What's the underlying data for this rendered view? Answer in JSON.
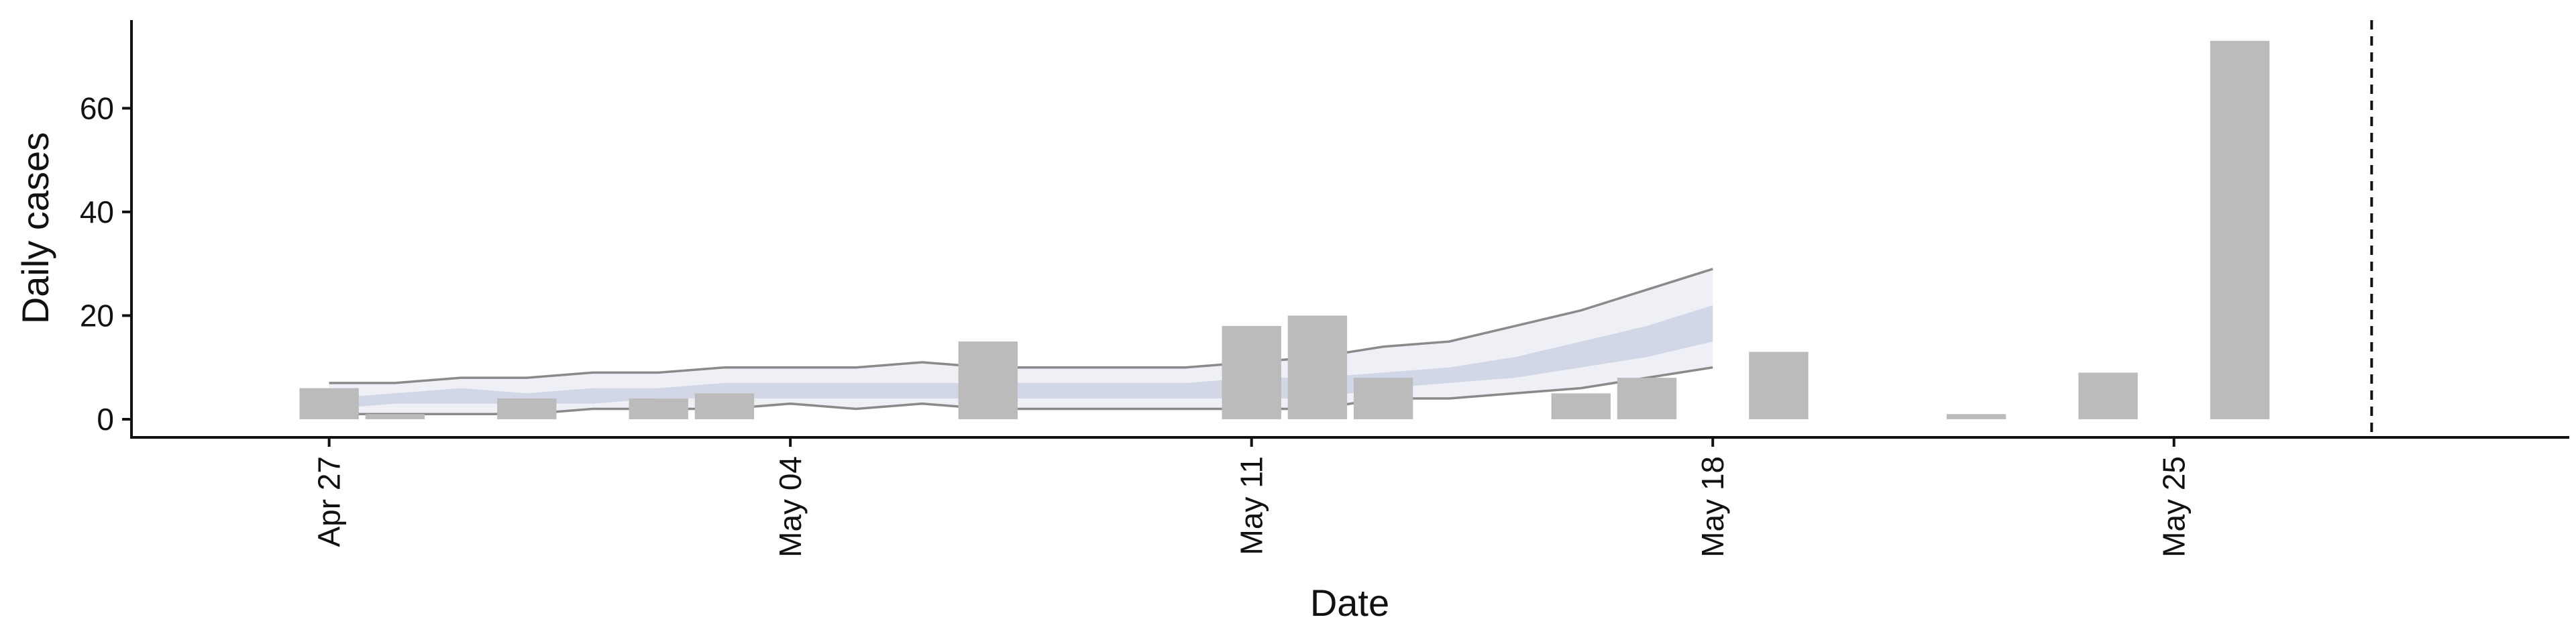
{
  "chart_data": {
    "type": "bar",
    "xlabel": "Date",
    "ylabel": "Daily cases",
    "ylim": [
      -3.5,
      77
    ],
    "xlim": [
      "2020-04-24",
      "2020-05-31"
    ],
    "x_ticks": [
      {
        "date": "2020-04-27",
        "label": "Apr 27"
      },
      {
        "date": "2020-05-04",
        "label": "May 04"
      },
      {
        "date": "2020-05-11",
        "label": "May 11"
      },
      {
        "date": "2020-05-18",
        "label": "May 18"
      },
      {
        "date": "2020-05-25",
        "label": "May 25"
      }
    ],
    "y_ticks": [
      0,
      20,
      40,
      60
    ],
    "bars": {
      "color": "#bbbbbb",
      "dates": [
        "2020-04-27",
        "2020-04-28",
        "2020-04-30",
        "2020-05-02",
        "2020-05-03",
        "2020-05-07",
        "2020-05-11",
        "2020-05-12",
        "2020-05-13",
        "2020-05-16",
        "2020-05-17",
        "2020-05-19",
        "2020-05-22",
        "2020-05-24",
        "2020-05-26"
      ],
      "values": [
        6,
        1,
        4,
        4,
        5,
        15,
        18,
        20,
        8,
        5,
        8,
        13,
        1,
        9,
        73
      ]
    },
    "bands": {
      "color": "#8a96c0",
      "dates": [
        "2020-04-27",
        "2020-04-28",
        "2020-04-29",
        "2020-04-30",
        "2020-05-01",
        "2020-05-02",
        "2020-05-03",
        "2020-05-04",
        "2020-05-05",
        "2020-05-06",
        "2020-05-07",
        "2020-05-08",
        "2020-05-09",
        "2020-05-10",
        "2020-05-11",
        "2020-05-12",
        "2020-05-13",
        "2020-05-14",
        "2020-05-15",
        "2020-05-16",
        "2020-05-17",
        "2020-05-18"
      ],
      "outer_upper": [
        7,
        7,
        8,
        8,
        9,
        9,
        10,
        10,
        10,
        11,
        10,
        10,
        10,
        10,
        11,
        12,
        14,
        15,
        18,
        21,
        25,
        29
      ],
      "outer_lower": [
        1,
        1,
        1,
        1,
        2,
        2,
        2,
        3,
        2,
        3,
        2,
        2,
        2,
        2,
        2,
        2,
        4,
        4,
        5,
        6,
        8,
        10
      ],
      "inner_upper": [
        4,
        5,
        6,
        5,
        6,
        6,
        7,
        7,
        7,
        7,
        7,
        7,
        7,
        7,
        8,
        8,
        9,
        10,
        12,
        15,
        18,
        22
      ],
      "inner_lower": [
        2,
        3,
        3,
        3,
        3,
        4,
        4,
        4,
        4,
        4,
        4,
        4,
        4,
        4,
        4,
        4,
        6,
        7,
        8,
        10,
        12,
        15
      ],
      "projection_start": "2020-05-11"
    },
    "vline": {
      "date": "2020-05-28",
      "style": "dashed"
    }
  }
}
